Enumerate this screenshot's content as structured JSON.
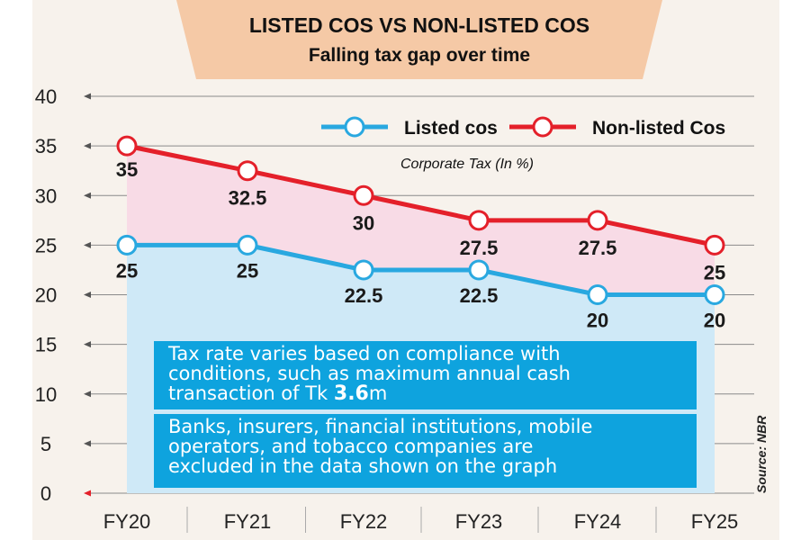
{
  "chart_data": {
    "type": "line",
    "title": "LISTED COS VS NON-LISTED COS",
    "subtitle": "Falling tax gap over time",
    "unit_label": "Corporate Tax (In %)",
    "categories": [
      "FY20",
      "FY21",
      "FY22",
      "FY23",
      "FY24",
      "FY25"
    ],
    "series": [
      {
        "name": "Listed cos",
        "values": [
          25,
          25,
          22.5,
          22.5,
          20,
          20
        ],
        "labels": [
          "25",
          "25",
          "22.5",
          "22.5",
          "20",
          "20"
        ],
        "color": "#29a8e0"
      },
      {
        "name": "Non-listed Cos",
        "values": [
          35,
          32.5,
          30,
          27.5,
          27.5,
          25
        ],
        "labels": [
          "35",
          "32.5",
          "30",
          "27.5",
          "27.5",
          "25"
        ],
        "color": "#e4202a"
      }
    ],
    "y_ticks": [
      "0",
      "5",
      "10",
      "15",
      "20",
      "25",
      "30",
      "35",
      "40"
    ],
    "ylim": [
      0,
      40
    ],
    "grid": true,
    "legend": "top-right"
  },
  "notes": {
    "note1_line1": "Tax rate varies based on compliance with",
    "note1_line2": "conditions, such as maximum annual cash",
    "note1_line3_prefix": "transaction of Tk ",
    "note1_amount": "3.6",
    "note1_suffix": "m",
    "note2_line1": "Banks, insurers, financial institutions, mobile",
    "note2_line2": "operators, and tobacco companies are",
    "note2_line3": "excluded in the data shown on the graph"
  },
  "source": "Source: NBR",
  "colors": {
    "panel_bg": "#f7f2ec",
    "banner": "#f5c9a6",
    "listed_fill": "#cfe9f7",
    "gap_fill": "#f8dbe6",
    "note_box": "#0ea3de"
  }
}
